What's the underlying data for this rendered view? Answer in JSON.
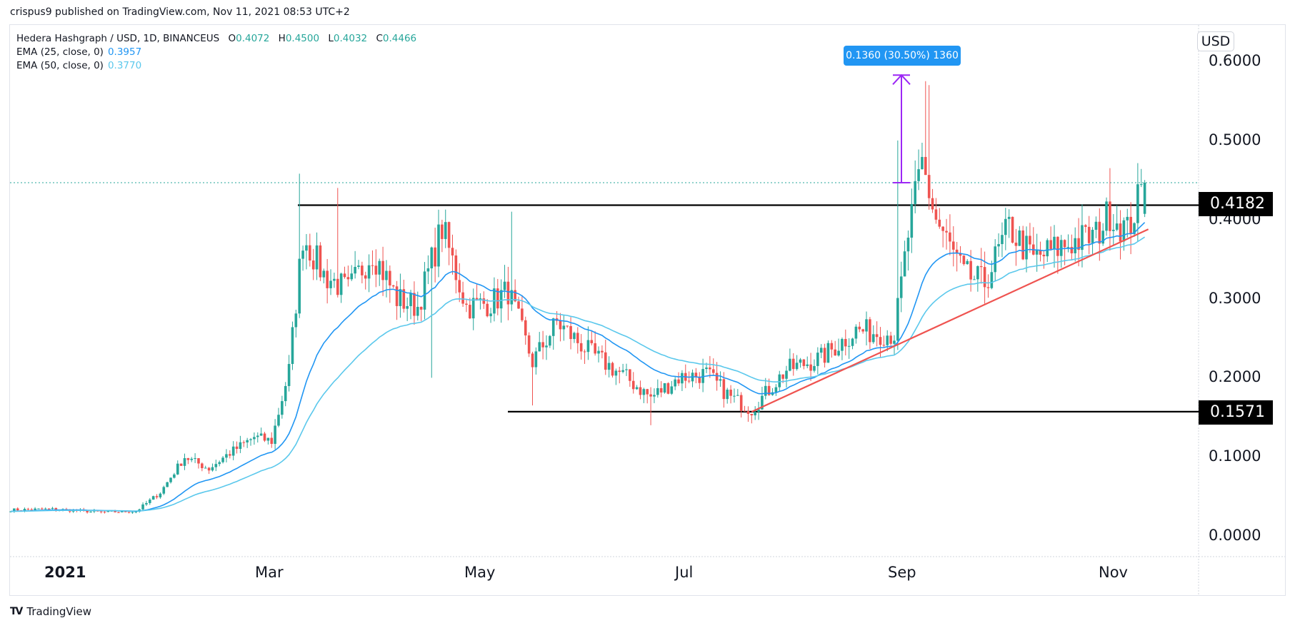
{
  "header": {
    "publish_line": "crispus9 published on TradingView.com, Nov 11, 2021 08:53 UTC+2"
  },
  "legend": {
    "symbol": "Hedera Hashgraph / USD, 1D, BINANCEUS",
    "open_k": "O",
    "open_v": "0.4072",
    "high_k": "H",
    "high_v": "0.4500",
    "low_k": "L",
    "low_v": "0.4032",
    "close_k": "C",
    "close_v": "0.4466",
    "ema25_label": "EMA (25, close, 0)",
    "ema25_value": "0.3957",
    "ema50_label": "EMA (50, close, 0)",
    "ema50_value": "0.3770"
  },
  "price_scale": {
    "currency": "USD",
    "ticks": [
      "0.6000",
      "0.5000",
      "0.4000",
      "0.3000",
      "0.2000",
      "0.1000",
      "0.0000"
    ],
    "resistance_label": "0.4182",
    "support_label": "0.1571"
  },
  "time_scale": {
    "ticks": [
      {
        "label": "2021",
        "bold": true
      },
      {
        "label": "Mar",
        "bold": false
      },
      {
        "label": "May",
        "bold": false
      },
      {
        "label": "Jul",
        "bold": false
      },
      {
        "label": "Sep",
        "bold": false
      },
      {
        "label": "Nov",
        "bold": false
      }
    ]
  },
  "measure": {
    "label": "0.1360 (30.50%) 1360"
  },
  "footer": {
    "logo": "TV",
    "brand": "TradingView"
  },
  "colors": {
    "up": "#26a69a",
    "down": "#ef5350",
    "ema25": "#2196f3",
    "ema50": "#5bc8ec",
    "trendline": "#ef5350",
    "hline": "#000000",
    "measure": "#9c27f5",
    "last_price_line": "#26a69a"
  },
  "chart_data": {
    "type": "candlestick",
    "title": "Hedera Hashgraph / USD, 1D, BINANCEUS",
    "xlabel": "",
    "ylabel": "USD",
    "ylim": [
      0.0,
      0.62
    ],
    "x_ticks": [
      "2021",
      "Mar",
      "May",
      "Jul",
      "Sep",
      "Nov"
    ],
    "y_ticks": [
      0.0,
      0.1,
      0.2,
      0.3,
      0.4,
      0.5,
      0.6
    ],
    "last_ohlc": {
      "open": 0.4072,
      "high": 0.45,
      "low": 0.4032,
      "close": 0.4466
    },
    "indicators": [
      {
        "name": "EMA (25, close, 0)",
        "last": 0.3957
      },
      {
        "name": "EMA (50, close, 0)",
        "last": 0.377
      }
    ],
    "horizontal_lines": [
      {
        "name": "resistance",
        "value": 0.4182
      },
      {
        "name": "support",
        "value": 0.1571
      }
    ],
    "trendline": {
      "from": {
        "date": "2021-07-21",
        "value": 0.157
      },
      "to": {
        "date": "2021-11-11",
        "value": 0.385
      }
    },
    "measure_annotation": {
      "from": 0.4466,
      "to": 0.5826,
      "change": 0.136,
      "percent": 30.5
    },
    "key_closes": {
      "dates": [
        "2020-12-20",
        "2021-01-01",
        "2021-01-15",
        "2021-01-25",
        "2021-02-01",
        "2021-02-08",
        "2021-02-15",
        "2021-02-20",
        "2021-02-28",
        "2021-03-05",
        "2021-03-10",
        "2021-03-14",
        "2021-03-20",
        "2021-03-27",
        "2021-04-03",
        "2021-04-10",
        "2021-04-16",
        "2021-04-23",
        "2021-04-30",
        "2021-05-07",
        "2021-05-12",
        "2021-05-19",
        "2021-05-26",
        "2021-06-05",
        "2021-06-15",
        "2021-06-22",
        "2021-06-30",
        "2021-07-08",
        "2021-07-15",
        "2021-07-21",
        "2021-07-31",
        "2021-08-10",
        "2021-08-20",
        "2021-08-31",
        "2021-09-04",
        "2021-09-08",
        "2021-09-12",
        "2021-09-20",
        "2021-09-26",
        "2021-10-03",
        "2021-10-10",
        "2021-10-20",
        "2021-10-28",
        "2021-11-01",
        "2021-11-06",
        "2021-11-11"
      ],
      "closes": [
        0.033,
        0.034,
        0.03,
        0.031,
        0.055,
        0.1,
        0.085,
        0.102,
        0.125,
        0.12,
        0.21,
        0.38,
        0.33,
        0.31,
        0.36,
        0.3,
        0.29,
        0.39,
        0.29,
        0.295,
        0.31,
        0.22,
        0.27,
        0.23,
        0.2,
        0.175,
        0.2,
        0.205,
        0.175,
        0.16,
        0.21,
        0.225,
        0.26,
        0.255,
        0.38,
        0.47,
        0.4,
        0.33,
        0.32,
        0.39,
        0.35,
        0.37,
        0.38,
        0.41,
        0.385,
        0.4466
      ]
    }
  }
}
